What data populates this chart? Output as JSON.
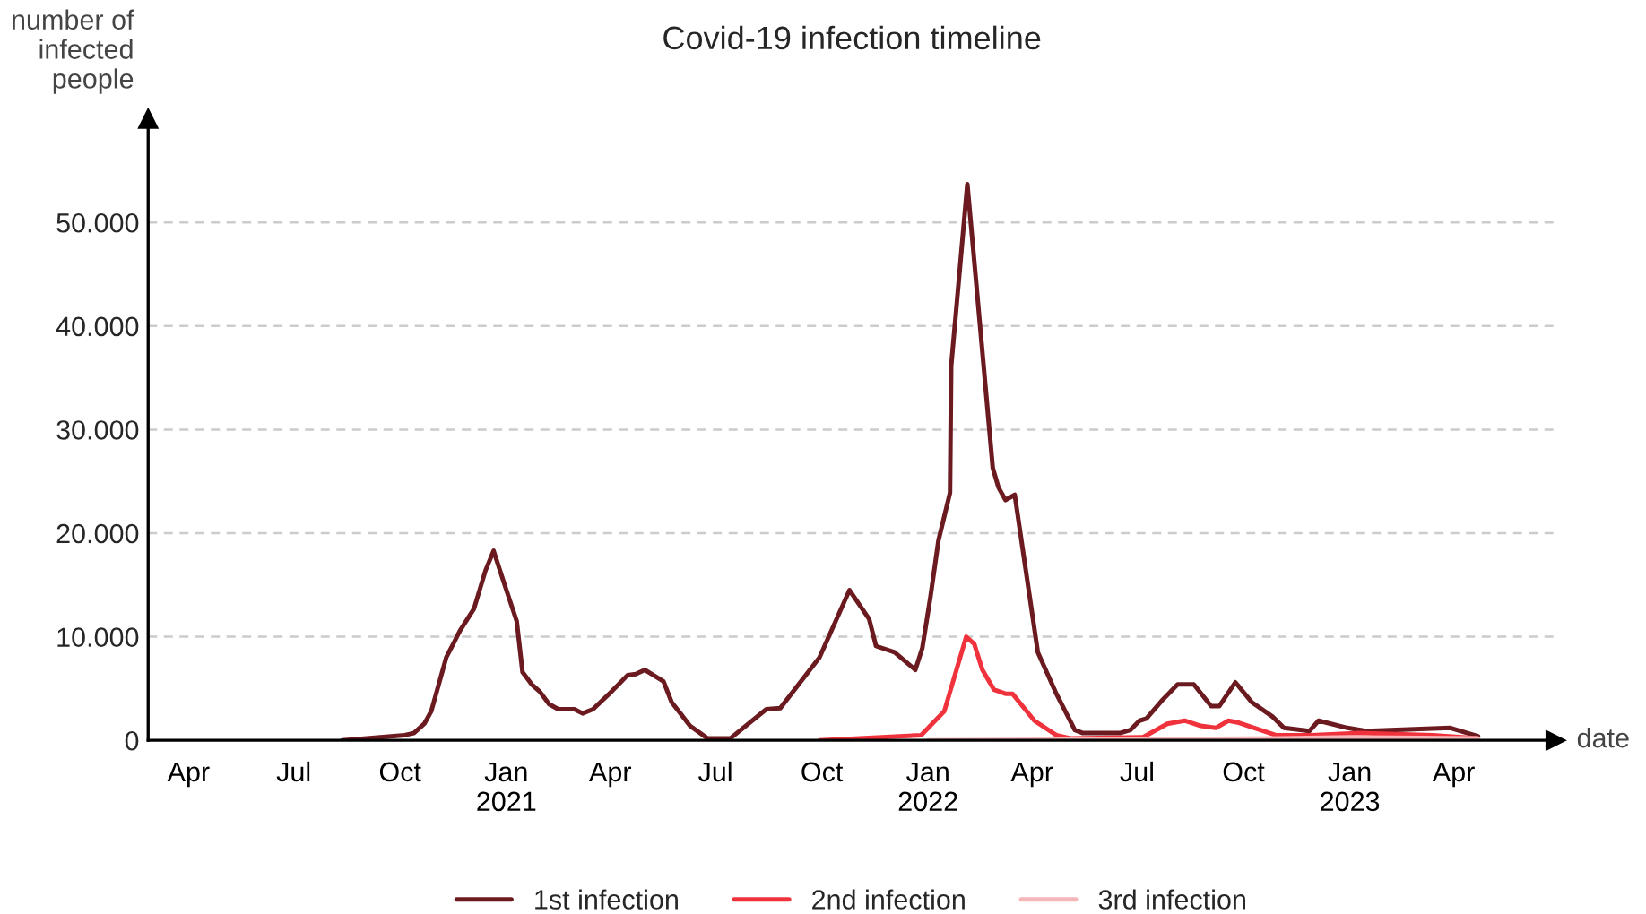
{
  "chart_data": {
    "type": "line",
    "title": "Covid-19 infection timeline",
    "xlabel": "date",
    "ylabel": "number of\ninfected\npeople",
    "xlim": [
      "2020-02-26",
      "2023-06-28"
    ],
    "ylim": [
      0,
      60000
    ],
    "xticks": [
      {
        "value": "2020-04-01",
        "label": "Apr"
      },
      {
        "value": "2020-07-01",
        "label": "Jul"
      },
      {
        "value": "2020-10-01",
        "label": "Oct"
      },
      {
        "value": "2021-01-01",
        "label": "Jan\n2021"
      },
      {
        "value": "2021-04-01",
        "label": "Apr"
      },
      {
        "value": "2021-07-01",
        "label": "Jul"
      },
      {
        "value": "2021-10-01",
        "label": "Oct"
      },
      {
        "value": "2022-01-01",
        "label": "Jan\n2022"
      },
      {
        "value": "2022-04-01",
        "label": "Apr"
      },
      {
        "value": "2022-07-01",
        "label": "Jul"
      },
      {
        "value": "2022-10-01",
        "label": "Oct"
      },
      {
        "value": "2023-01-01",
        "label": "Jan\n2023"
      },
      {
        "value": "2023-04-01",
        "label": "Apr"
      }
    ],
    "yticks": [
      0,
      {
        "value": 10000,
        "label": "10.000"
      },
      {
        "value": 20000,
        "label": "20.000"
      },
      {
        "value": 30000,
        "label": "30.000"
      },
      {
        "value": 40000,
        "label": "40.000"
      },
      {
        "value": 50000,
        "label": "50.000"
      }
    ],
    "grid": "y",
    "legend": "bottom",
    "marker": "none",
    "line_style": "solid",
    "series": [
      {
        "name": "1st infection",
        "color": "#6b1a1f",
        "x": [
          "2020-08-12",
          "2020-10-05",
          "2020-10-13",
          "2020-10-22",
          "2020-10-28",
          "2020-11-10",
          "2020-11-22",
          "2020-12-04",
          "2020-12-14",
          "2020-12-21",
          "2020-12-30",
          "2021-01-10",
          "2021-01-15",
          "2021-01-23",
          "2021-01-30",
          "2021-02-07",
          "2021-02-15",
          "2021-03-01",
          "2021-03-08",
          "2021-03-17",
          "2021-04-02",
          "2021-04-16",
          "2021-04-23",
          "2021-05-01",
          "2021-05-17",
          "2021-05-24",
          "2021-06-09",
          "2021-06-24",
          "2021-07-14",
          "2021-08-14",
          "2021-08-26",
          "2021-09-29",
          "2021-10-25",
          "2021-11-11",
          "2021-11-17",
          "2021-12-03",
          "2021-12-21",
          "2021-12-27",
          "2022-01-03",
          "2022-01-10",
          "2022-01-20",
          "2022-01-21",
          "2022-02-04",
          "2022-02-26",
          "2022-03-03",
          "2022-03-09",
          "2022-03-17",
          "2022-04-06",
          "2022-04-22",
          "2022-05-08",
          "2022-05-15",
          "2022-06-16",
          "2022-06-25",
          "2022-07-03",
          "2022-07-09",
          "2022-07-22",
          "2022-08-05",
          "2022-08-19",
          "2022-09-03",
          "2022-09-10",
          "2022-09-24",
          "2022-10-08",
          "2022-10-26",
          "2022-11-05",
          "2022-11-27",
          "2022-12-05",
          "2022-12-30",
          "2023-01-15",
          "2023-03-29",
          "2023-04-22"
        ],
        "values": [
          0,
          500,
          700,
          1600,
          2800,
          8000,
          10600,
          12700,
          16400,
          18300,
          15200,
          11500,
          6600,
          5400,
          4700,
          3500,
          3000,
          3000,
          2600,
          3000,
          4700,
          6300,
          6400,
          6800,
          5700,
          3700,
          1400,
          200,
          200,
          3000,
          3100,
          8000,
          14500,
          11700,
          9100,
          8500,
          6800,
          8900,
          13800,
          19300,
          23900,
          36100,
          53700,
          26300,
          24400,
          23200,
          23700,
          8500,
          4500,
          1000,
          700,
          700,
          1000,
          1900,
          2100,
          3800,
          5400,
          5400,
          3300,
          3300,
          5600,
          3700,
          2300,
          1200,
          900,
          1900,
          1200,
          900,
          1200,
          400
        ]
      },
      {
        "name": "2nd infection",
        "color": "#f0323c",
        "x": [
          "2021-09-29",
          "2021-12-26",
          "2022-01-15",
          "2022-02-03",
          "2022-02-10",
          "2022-02-17",
          "2022-02-27",
          "2022-03-09",
          "2022-03-15",
          "2022-04-03",
          "2022-04-22",
          "2022-05-04",
          "2022-07-06",
          "2022-07-27",
          "2022-08-11",
          "2022-08-25",
          "2022-09-07",
          "2022-09-18",
          "2022-09-27",
          "2022-10-29",
          "2022-11-29",
          "2023-01-10",
          "2023-03-14",
          "2023-04-22"
        ],
        "values": [
          0,
          500,
          2800,
          10000,
          9300,
          6800,
          4900,
          4500,
          4500,
          1900,
          500,
          200,
          300,
          1600,
          1900,
          1400,
          1200,
          1900,
          1700,
          500,
          500,
          700,
          500,
          200
        ]
      },
      {
        "name": "3rd infection",
        "color": "#f4b6b8",
        "x": [
          "2022-01-01",
          "2022-07-01",
          "2022-11-01",
          "2023-01-01",
          "2023-04-22"
        ],
        "values": [
          0,
          100,
          200,
          300,
          200
        ]
      }
    ]
  }
}
